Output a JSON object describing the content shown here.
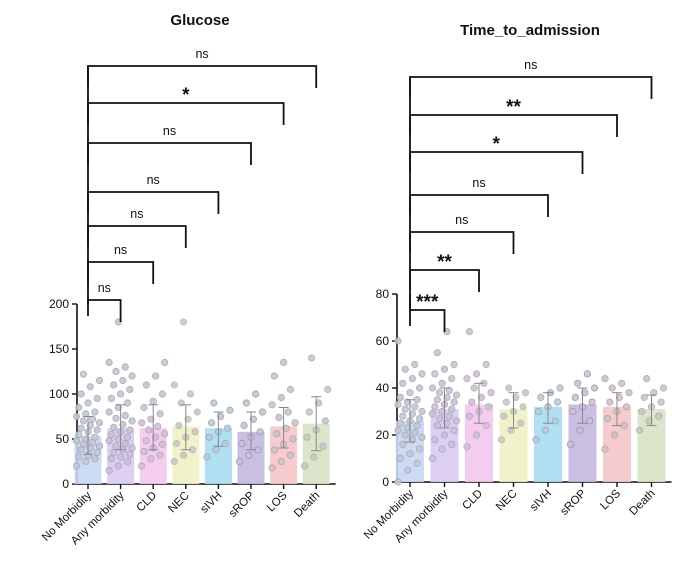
{
  "chart_data": [
    {
      "type": "bar",
      "title": "Glucose",
      "xlabel": "",
      "ylabel": "",
      "ylim": [
        0,
        200
      ],
      "yticks": [
        0,
        50,
        100,
        150,
        200
      ],
      "grid": false,
      "categories": [
        "No Morbidity",
        "Any morbidity",
        "CLD",
        "NEC",
        "sIVH",
        "sROP",
        "LOS",
        "Death"
      ],
      "values": [
        53,
        62,
        62,
        64,
        62,
        58,
        64,
        67
      ],
      "error_upper": [
        75,
        88,
        88,
        88,
        80,
        80,
        85,
        97
      ],
      "error_lower": [
        33,
        38,
        38,
        38,
        42,
        38,
        40,
        37
      ],
      "points": [
        [
          20,
          25,
          28,
          30,
          32,
          35,
          38,
          40,
          42,
          44,
          46,
          48,
          50,
          52,
          55,
          58,
          60,
          62,
          65,
          68,
          70,
          72,
          75,
          78,
          80,
          85,
          90,
          95,
          100,
          108,
          115,
          122
        ],
        [
          15,
          20,
          25,
          28,
          30,
          33,
          35,
          38,
          40,
          42,
          45,
          48,
          50,
          52,
          55,
          58,
          60,
          63,
          66,
          70,
          73,
          76,
          80,
          85,
          90,
          95,
          100,
          105,
          110,
          115,
          120,
          125,
          130,
          135,
          180
        ],
        [
          20,
          28,
          32,
          36,
          40,
          44,
          48,
          52,
          56,
          60,
          64,
          68,
          72,
          78,
          85,
          92,
          100,
          110,
          120,
          135
        ],
        [
          25,
          32,
          38,
          45,
          52,
          58,
          65,
          72,
          80,
          90,
          100,
          110,
          180
        ],
        [
          30,
          38,
          45,
          52,
          58,
          62,
          68,
          75,
          82,
          90
        ],
        [
          25,
          32,
          38,
          45,
          52,
          58,
          65,
          72,
          80,
          90,
          100
        ],
        [
          18,
          25,
          32,
          38,
          44,
          50,
          56,
          62,
          68,
          74,
          80,
          88,
          96,
          105,
          120,
          135
        ],
        [
          20,
          30,
          42,
          52,
          60,
          70,
          80,
          90,
          105,
          140
        ]
      ],
      "colors": [
        "#c7d7f2",
        "#d9caf2",
        "#f3c6ee",
        "#eef2c4",
        "#a7dcf0",
        "#c4b7e0",
        "#f4c5c8",
        "#d6e2c4"
      ],
      "comparisons": [
        {
          "from": "No Morbidity",
          "to": "Any morbidity",
          "label": "ns"
        },
        {
          "from": "No Morbidity",
          "to": "CLD",
          "label": "ns"
        },
        {
          "from": "No Morbidity",
          "to": "NEC",
          "label": "ns"
        },
        {
          "from": "No Morbidity",
          "to": "sIVH",
          "label": "ns"
        },
        {
          "from": "No Morbidity",
          "to": "sROP",
          "label": "ns"
        },
        {
          "from": "No Morbidity",
          "to": "LOS",
          "label": "*"
        },
        {
          "from": "No Morbidity",
          "to": "Death",
          "label": "ns"
        }
      ]
    },
    {
      "type": "bar",
      "title": "Time_to_admission",
      "xlabel": "",
      "ylabel": "",
      "ylim": [
        0,
        80
      ],
      "yticks": [
        0,
        20,
        40,
        60,
        80
      ],
      "grid": false,
      "categories": [
        "No Morbidity",
        "Any morbidity",
        "CLD",
        "NEC",
        "sIVH",
        "sROP",
        "LOS",
        "Death"
      ],
      "values": [
        26,
        31,
        33,
        31,
        32,
        33,
        32,
        31
      ],
      "error_upper": [
        35,
        40,
        42,
        38,
        38,
        40,
        38,
        37
      ],
      "error_lower": [
        17,
        23,
        25,
        23,
        25,
        25,
        24,
        24
      ],
      "points": [
        [
          0,
          5,
          8,
          10,
          12,
          14,
          16,
          18,
          19,
          20,
          21,
          22,
          23,
          24,
          25,
          26,
          27,
          28,
          29,
          30,
          31,
          32,
          33,
          34,
          35,
          36,
          38,
          40,
          42,
          44,
          46,
          48,
          50,
          60
        ],
        [
          10,
          14,
          16,
          18,
          20,
          22,
          24,
          25,
          26,
          27,
          28,
          29,
          30,
          31,
          32,
          33,
          34,
          35,
          36,
          37,
          38,
          39,
          40,
          42,
          44,
          46,
          48,
          50,
          55,
          64
        ],
        [
          15,
          20,
          24,
          28,
          30,
          32,
          34,
          36,
          38,
          40,
          42,
          44,
          46,
          50,
          64
        ],
        [
          18,
          22,
          25,
          28,
          30,
          32,
          34,
          36,
          38,
          40
        ],
        [
          18,
          22,
          26,
          30,
          32,
          34,
          36,
          38,
          40
        ],
        [
          16,
          22,
          26,
          30,
          32,
          34,
          36,
          38,
          40,
          42,
          46
        ],
        [
          14,
          20,
          24,
          27,
          30,
          32,
          34,
          36,
          38,
          40,
          42,
          44
        ],
        [
          22,
          26,
          28,
          30,
          32,
          34,
          36,
          38,
          40,
          44
        ]
      ],
      "colors": [
        "#c7d7f2",
        "#d9caf2",
        "#f3c6ee",
        "#eef2c4",
        "#a7dcf0",
        "#c4b7e0",
        "#f4c5c8",
        "#d6e2c4"
      ],
      "comparisons": [
        {
          "from": "No Morbidity",
          "to": "Any morbidity",
          "label": "***"
        },
        {
          "from": "No Morbidity",
          "to": "CLD",
          "label": "**"
        },
        {
          "from": "No Morbidity",
          "to": "NEC",
          "label": "ns"
        },
        {
          "from": "No Morbidity",
          "to": "sIVH",
          "label": "ns"
        },
        {
          "from": "No Morbidity",
          "to": "sROP",
          "label": "*"
        },
        {
          "from": "No Morbidity",
          "to": "LOS",
          "label": "**"
        },
        {
          "from": "No Morbidity",
          "to": "Death",
          "label": "ns"
        }
      ]
    }
  ]
}
